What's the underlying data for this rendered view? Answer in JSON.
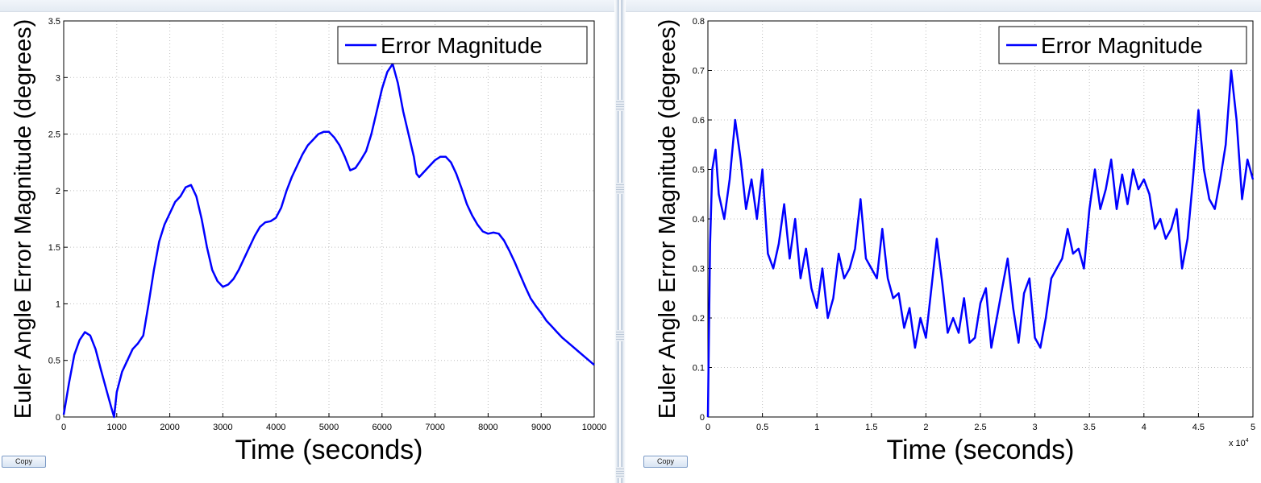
{
  "colors": {
    "line": "#0000ff",
    "grid": "#bfbfbf",
    "axis": "#000000"
  },
  "panels": [
    {
      "copy_label": "Copy",
      "chart_data": {
        "type": "line",
        "xlabel": "Time (seconds)",
        "ylabel": "Euler Angle Error Magnitude (degrees)",
        "xlim": [
          0,
          10000
        ],
        "ylim": [
          0,
          3.5
        ],
        "x_ticks": [
          "0",
          "1000",
          "2000",
          "3000",
          "4000",
          "5000",
          "6000",
          "7000",
          "8000",
          "9000",
          "10000"
        ],
        "y_ticks": [
          "0",
          "0.5",
          "1",
          "1.5",
          "2",
          "2.5",
          "3",
          "3.5"
        ],
        "grid": true,
        "legend_position": "top-right",
        "series": [
          {
            "name": "Error Magnitude",
            "x": [
              0,
              100,
              200,
              300,
              400,
              500,
              600,
              700,
              800,
              900,
              950,
              1000,
              1100,
              1200,
              1300,
              1400,
              1500,
              1600,
              1700,
              1800,
              1900,
              2000,
              2100,
              2200,
              2300,
              2400,
              2500,
              2600,
              2700,
              2800,
              2900,
              3000,
              3100,
              3200,
              3300,
              3400,
              3500,
              3600,
              3700,
              3800,
              3900,
              4000,
              4100,
              4200,
              4300,
              4400,
              4500,
              4600,
              4700,
              4800,
              4900,
              5000,
              5100,
              5200,
              5300,
              5400,
              5500,
              5600,
              5700,
              5800,
              5900,
              6000,
              6100,
              6200,
              6300,
              6400,
              6500,
              6600,
              6650,
              6700,
              6800,
              6900,
              7000,
              7100,
              7200,
              7300,
              7400,
              7500,
              7600,
              7700,
              7800,
              7900,
              8000,
              8100,
              8200,
              8300,
              8400,
              8500,
              8600,
              8700,
              8800,
              8900,
              9000,
              9100,
              9200,
              9300,
              9400,
              9500,
              9600,
              9700,
              9800,
              9900,
              10000
            ],
            "y": [
              0.02,
              0.3,
              0.55,
              0.68,
              0.75,
              0.72,
              0.6,
              0.42,
              0.25,
              0.08,
              0.0,
              0.22,
              0.4,
              0.5,
              0.6,
              0.65,
              0.72,
              1.0,
              1.3,
              1.55,
              1.7,
              1.8,
              1.9,
              1.95,
              2.03,
              2.05,
              1.95,
              1.75,
              1.5,
              1.3,
              1.2,
              1.15,
              1.17,
              1.22,
              1.3,
              1.4,
              1.5,
              1.6,
              1.68,
              1.72,
              1.73,
              1.76,
              1.85,
              2.0,
              2.12,
              2.22,
              2.32,
              2.4,
              2.45,
              2.5,
              2.52,
              2.52,
              2.47,
              2.4,
              2.3,
              2.18,
              2.2,
              2.27,
              2.35,
              2.5,
              2.7,
              2.9,
              3.05,
              3.12,
              2.95,
              2.7,
              2.5,
              2.3,
              2.15,
              2.12,
              2.17,
              2.22,
              2.27,
              2.3,
              2.3,
              2.25,
              2.15,
              2.02,
              1.88,
              1.78,
              1.7,
              1.64,
              1.62,
              1.63,
              1.62,
              1.56,
              1.47,
              1.37,
              1.26,
              1.15,
              1.05,
              0.98,
              0.92,
              0.85,
              0.8,
              0.75,
              0.7,
              0.66,
              0.62,
              0.58,
              0.54,
              0.5,
              0.46
            ]
          }
        ]
      }
    },
    {
      "copy_label": "Copy",
      "chart_data": {
        "type": "line",
        "xlabel": "Time (seconds)",
        "ylabel": "Euler Angle Error Magnitude (degrees)",
        "xlim": [
          0,
          50000
        ],
        "ylim": [
          0,
          0.8
        ],
        "x_ticks": [
          "0",
          "0.5",
          "1",
          "1.5",
          "2",
          "2.5",
          "3",
          "3.5",
          "4",
          "4.5",
          "5"
        ],
        "x_exponent_label": "x 10",
        "x_exponent_power": "4",
        "y_ticks": [
          "0",
          "0.1",
          "0.2",
          "0.3",
          "0.4",
          "0.5",
          "0.6",
          "0.7",
          "0.8"
        ],
        "grid": true,
        "legend_position": "top-right",
        "series": [
          {
            "name": "Error Magnitude",
            "x": [
              0,
              200,
              400,
              700,
              1000,
              1500,
              2000,
              2500,
              3000,
              3500,
              4000,
              4500,
              5000,
              5500,
              6000,
              6500,
              7000,
              7500,
              8000,
              8500,
              9000,
              9500,
              10000,
              10500,
              11000,
              11500,
              12000,
              12500,
              13000,
              13500,
              14000,
              14500,
              15000,
              15500,
              16000,
              16500,
              17000,
              17500,
              18000,
              18500,
              19000,
              19500,
              20000,
              20500,
              21000,
              21500,
              22000,
              22500,
              23000,
              23500,
              24000,
              24500,
              25000,
              25500,
              26000,
              26500,
              27000,
              27500,
              28000,
              28500,
              29000,
              29500,
              30000,
              30500,
              31000,
              31500,
              32000,
              32500,
              33000,
              33500,
              34000,
              34500,
              35000,
              35500,
              36000,
              36500,
              37000,
              37500,
              38000,
              38500,
              39000,
              39500,
              40000,
              40500,
              41000,
              41500,
              42000,
              42500,
              43000,
              43500,
              44000,
              44500,
              45000,
              45500,
              46000,
              46500,
              47000,
              47500,
              48000,
              48500,
              49000,
              49500,
              50000
            ],
            "y": [
              0.0,
              0.35,
              0.5,
              0.54,
              0.45,
              0.4,
              0.48,
              0.6,
              0.52,
              0.42,
              0.48,
              0.4,
              0.5,
              0.33,
              0.3,
              0.35,
              0.43,
              0.32,
              0.4,
              0.28,
              0.34,
              0.26,
              0.22,
              0.3,
              0.2,
              0.24,
              0.33,
              0.28,
              0.3,
              0.34,
              0.44,
              0.32,
              0.3,
              0.28,
              0.38,
              0.28,
              0.24,
              0.25,
              0.18,
              0.22,
              0.14,
              0.2,
              0.16,
              0.26,
              0.36,
              0.27,
              0.17,
              0.2,
              0.17,
              0.24,
              0.15,
              0.16,
              0.23,
              0.26,
              0.14,
              0.2,
              0.26,
              0.32,
              0.22,
              0.15,
              0.25,
              0.28,
              0.16,
              0.14,
              0.2,
              0.28,
              0.3,
              0.32,
              0.38,
              0.33,
              0.34,
              0.3,
              0.42,
              0.5,
              0.42,
              0.46,
              0.52,
              0.42,
              0.49,
              0.43,
              0.5,
              0.46,
              0.48,
              0.45,
              0.38,
              0.4,
              0.36,
              0.38,
              0.42,
              0.3,
              0.36,
              0.48,
              0.62,
              0.5,
              0.44,
              0.42,
              0.48,
              0.55,
              0.7,
              0.6,
              0.44,
              0.52,
              0.48
            ]
          }
        ]
      }
    }
  ]
}
